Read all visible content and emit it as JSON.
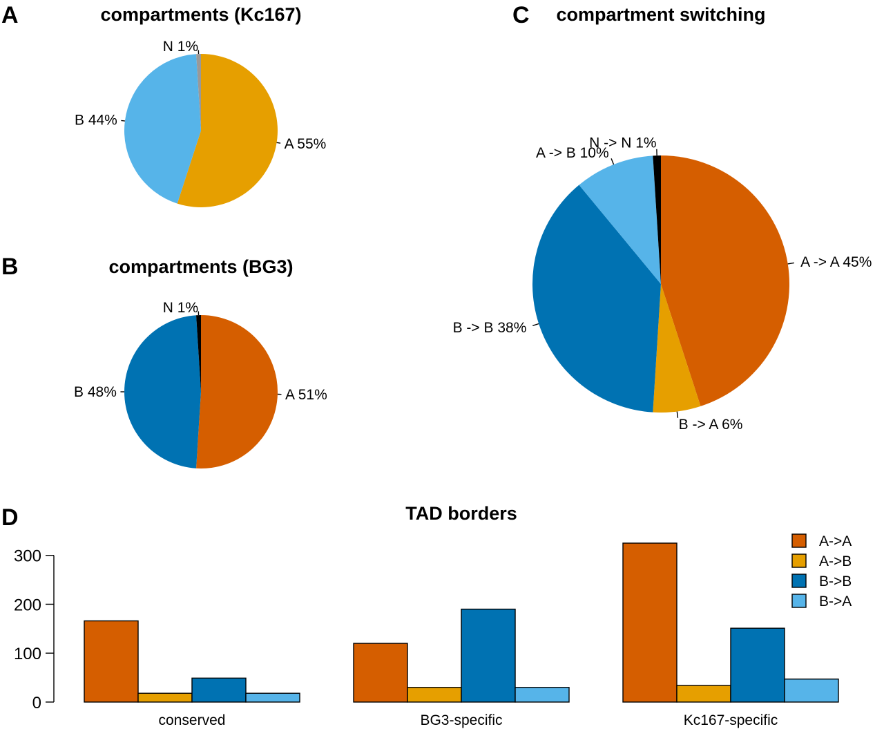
{
  "panels": {
    "A": {
      "letter": "A"
    },
    "B": {
      "letter": "B"
    },
    "C": {
      "letter": "C"
    },
    "D": {
      "letter": "D"
    }
  },
  "colors": {
    "A": "#e69f00",
    "B": "#56b4e9",
    "N": "#999999",
    "AA": "#d55e00",
    "AB": "#e69f00",
    "BB": "#0072b2",
    "BA": "#56b4e9",
    "NN": "#000000"
  },
  "chart_data": [
    {
      "type": "pie",
      "title": "compartments (Kc167)",
      "slices": [
        {
          "label": "A 55%",
          "value": 55,
          "color": "#e69f00"
        },
        {
          "label": "B 44%",
          "value": 44,
          "color": "#56b4e9"
        },
        {
          "label": "N 1%",
          "value": 1,
          "color": "#999999"
        }
      ]
    },
    {
      "type": "pie",
      "title": "compartments (BG3)",
      "slices": [
        {
          "label": "A 51%",
          "value": 51,
          "color": "#d55e00"
        },
        {
          "label": "B 48%",
          "value": 48,
          "color": "#0072b2"
        },
        {
          "label": "N 1%",
          "value": 1,
          "color": "#000000"
        }
      ]
    },
    {
      "type": "pie",
      "title": "compartment switching",
      "slices": [
        {
          "label": "A -> A 45%",
          "value": 45,
          "color": "#d55e00"
        },
        {
          "label": "B -> A 6%",
          "value": 6,
          "color": "#e69f00"
        },
        {
          "label": "B -> B 38%",
          "value": 38,
          "color": "#0072b2"
        },
        {
          "label": "A -> B 10%",
          "value": 10,
          "color": "#56b4e9"
        },
        {
          "label": "N -> N 1%",
          "value": 1,
          "color": "#000000"
        }
      ]
    },
    {
      "type": "bar",
      "title": "TAD borders",
      "categories": [
        "conserved",
        "BG3-specific",
        "Kc167-specific"
      ],
      "series": [
        {
          "name": "A->A",
          "color": "#d55e00",
          "values": [
            166,
            120,
            325
          ]
        },
        {
          "name": "A->B",
          "color": "#e69f00",
          "values": [
            18,
            30,
            34
          ]
        },
        {
          "name": "B->B",
          "color": "#0072b2",
          "values": [
            49,
            190,
            151
          ]
        },
        {
          "name": "B->A",
          "color": "#56b4e9",
          "values": [
            18,
            30,
            47
          ]
        }
      ],
      "ylim": [
        0,
        300
      ],
      "yticks": [
        "0",
        "100",
        "200",
        "300"
      ],
      "legend": "top-right"
    }
  ]
}
